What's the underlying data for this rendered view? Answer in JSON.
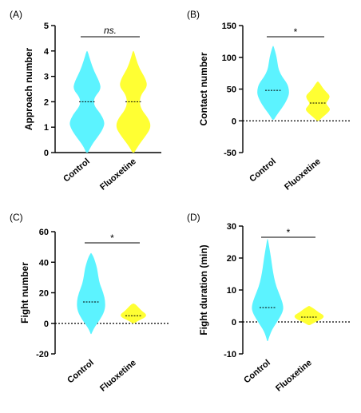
{
  "chart_data": [
    {
      "type": "violin",
      "panel_label": "(A)",
      "ylabel": "Approach number",
      "categories": [
        "Control",
        "Fluoxetine"
      ],
      "ylim": [
        0,
        5
      ],
      "yticks": [
        0,
        1,
        2,
        3,
        4,
        5
      ],
      "zero_line": false,
      "significance": "ns.",
      "series": [
        {
          "name": "Control",
          "color": "#5cf3ff",
          "median": 2,
          "min": 0,
          "max": 4,
          "profile": [
            [
              0,
              0.05
            ],
            [
              0.3,
              0.25
            ],
            [
              0.7,
              0.7
            ],
            [
              1.0,
              0.95
            ],
            [
              1.2,
              1.0
            ],
            [
              1.5,
              0.8
            ],
            [
              1.8,
              0.45
            ],
            [
              2.0,
              0.38
            ],
            [
              2.2,
              0.45
            ],
            [
              2.5,
              0.8
            ],
            [
              2.8,
              0.7
            ],
            [
              3.2,
              0.4
            ],
            [
              3.6,
              0.2
            ],
            [
              4.0,
              0.03
            ]
          ]
        },
        {
          "name": "Fluoxetine",
          "color": "#ffff33",
          "median": 2,
          "min": 0,
          "max": 4,
          "profile": [
            [
              0,
              0.05
            ],
            [
              0.3,
              0.3
            ],
            [
              0.7,
              0.75
            ],
            [
              1.0,
              1.0
            ],
            [
              1.3,
              0.9
            ],
            [
              1.7,
              0.45
            ],
            [
              2.0,
              0.35
            ],
            [
              2.3,
              0.45
            ],
            [
              2.6,
              0.8
            ],
            [
              2.9,
              0.7
            ],
            [
              3.3,
              0.35
            ],
            [
              3.7,
              0.15
            ],
            [
              4.0,
              0.03
            ]
          ]
        }
      ]
    },
    {
      "type": "violin",
      "panel_label": "(B)",
      "ylabel": "Contact number",
      "categories": [
        "Control",
        "Fluoxetine"
      ],
      "ylim": [
        -50,
        150
      ],
      "yticks": [
        -50,
        0,
        50,
        100,
        150
      ],
      "zero_line": true,
      "significance": "*",
      "series": [
        {
          "name": "Control",
          "color": "#5cf3ff",
          "median": 48,
          "min": 2,
          "max": 118,
          "profile": [
            [
              2,
              0.05
            ],
            [
              10,
              0.25
            ],
            [
              20,
              0.55
            ],
            [
              30,
              0.8
            ],
            [
              40,
              0.98
            ],
            [
              48,
              1.0
            ],
            [
              58,
              0.9
            ],
            [
              70,
              0.55
            ],
            [
              80,
              0.35
            ],
            [
              90,
              0.28
            ],
            [
              100,
              0.22
            ],
            [
              110,
              0.12
            ],
            [
              118,
              0.02
            ]
          ]
        },
        {
          "name": "Fluoxetine",
          "color": "#ffff33",
          "median": 28,
          "min": 0,
          "max": 62,
          "profile": [
            [
              0,
              0.05
            ],
            [
              6,
              0.3
            ],
            [
              12,
              0.6
            ],
            [
              18,
              0.8
            ],
            [
              24,
              0.6
            ],
            [
              28,
              0.5
            ],
            [
              34,
              0.7
            ],
            [
              40,
              0.75
            ],
            [
              46,
              0.5
            ],
            [
              52,
              0.3
            ],
            [
              58,
              0.15
            ],
            [
              62,
              0.02
            ]
          ]
        }
      ]
    },
    {
      "type": "violin",
      "panel_label": "(C)",
      "ylabel": "Fight number",
      "categories": [
        "Control",
        "Fluoxetine"
      ],
      "ylim": [
        -20,
        60
      ],
      "yticks": [
        -20,
        0,
        20,
        40,
        60
      ],
      "zero_line": true,
      "significance": "*",
      "series": [
        {
          "name": "Control",
          "color": "#5cf3ff",
          "median": 14,
          "min": -7,
          "max": 46,
          "profile": [
            [
              -7,
              0.02
            ],
            [
              -3,
              0.2
            ],
            [
              2,
              0.6
            ],
            [
              8,
              0.95
            ],
            [
              14,
              1.0
            ],
            [
              20,
              0.85
            ],
            [
              26,
              0.6
            ],
            [
              31,
              0.5
            ],
            [
              36,
              0.42
            ],
            [
              40,
              0.3
            ],
            [
              44,
              0.15
            ],
            [
              46,
              0.02
            ]
          ]
        },
        {
          "name": "Fluoxetine",
          "color": "#ffff33",
          "median": 5,
          "min": 0,
          "max": 13,
          "profile": [
            [
              0,
              0.05
            ],
            [
              2,
              0.4
            ],
            [
              4,
              0.85
            ],
            [
              6,
              0.9
            ],
            [
              8,
              0.6
            ],
            [
              10,
              0.4
            ],
            [
              12,
              0.2
            ],
            [
              13,
              0.02
            ]
          ]
        }
      ]
    },
    {
      "type": "violin",
      "panel_label": "(D)",
      "ylabel": "Fight duration (min)",
      "categories": [
        "Control",
        "Fluoxetine"
      ],
      "ylim": [
        -10,
        30
      ],
      "yticks": [
        -10,
        0,
        10,
        20,
        30
      ],
      "zero_line": true,
      "significance": "*",
      "series": [
        {
          "name": "Control",
          "color": "#5cf3ff",
          "median": 4.5,
          "min": -6,
          "max": 26,
          "profile": [
            [
              -6,
              0.02
            ],
            [
              -3,
              0.2
            ],
            [
              0,
              0.6
            ],
            [
              3,
              0.95
            ],
            [
              5,
              1.0
            ],
            [
              8,
              0.8
            ],
            [
              11,
              0.55
            ],
            [
              14,
              0.4
            ],
            [
              17,
              0.3
            ],
            [
              20,
              0.22
            ],
            [
              23,
              0.12
            ],
            [
              26,
              0.02
            ]
          ]
        },
        {
          "name": "Fluoxetine",
          "color": "#ffff33",
          "median": 1.5,
          "min": -1,
          "max": 5,
          "profile": [
            [
              -1,
              0.05
            ],
            [
              0,
              0.4
            ],
            [
              1,
              0.85
            ],
            [
              2,
              0.95
            ],
            [
              3,
              0.6
            ],
            [
              4,
              0.35
            ],
            [
              5,
              0.03
            ]
          ]
        }
      ]
    }
  ]
}
